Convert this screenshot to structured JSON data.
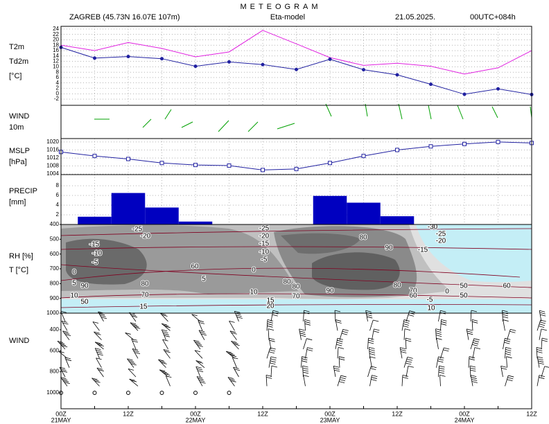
{
  "header": {
    "title": "METEOGRAM",
    "station": "ZAGREB (45.73N 16.07E  107m)",
    "model": "Eta-model",
    "date": "21.05.2025.",
    "run": "00UTC+084h"
  },
  "xlim": [
    0,
    84
  ],
  "x": [
    0,
    6,
    12,
    18,
    24,
    30,
    36,
    42,
    48,
    54,
    60,
    66,
    72,
    78,
    84
  ],
  "xticks": [
    {
      "value": 0,
      "label": "00Z"
    },
    {
      "value": 12,
      "label": "12Z"
    },
    {
      "value": 24,
      "label": "00Z"
    },
    {
      "value": 36,
      "label": "12Z"
    },
    {
      "value": 48,
      "label": "00Z"
    },
    {
      "value": 60,
      "label": "12Z"
    },
    {
      "value": 72,
      "label": "00Z"
    },
    {
      "value": 84,
      "label": "12Z"
    }
  ],
  "dates": [
    {
      "value": 0,
      "label": "21MAY"
    },
    {
      "value": 24,
      "label": "22MAY"
    },
    {
      "value": 48,
      "label": "23MAY"
    },
    {
      "value": 72,
      "label": "24MAY"
    }
  ],
  "chart_data": [
    {
      "type": "line",
      "unit": "[°C]",
      "ylim": [
        -4.3,
        25
      ],
      "yticks": [
        -2,
        0,
        2,
        4,
        6,
        8,
        10,
        12,
        14,
        16,
        18,
        20,
        22,
        24
      ],
      "grid": true,
      "series": [
        {
          "name": "T2m",
          "color": "#e020e0",
          "marker": "none",
          "values": [
            18,
            16,
            19,
            16.8,
            13.7,
            15.5,
            23.5,
            18.5,
            13.4,
            10.5,
            11.3,
            10.2,
            7.3,
            9.6,
            16
          ]
        },
        {
          "name": "Td2m",
          "color": "#2020a0",
          "marker": "circle",
          "values": [
            17.2,
            13.2,
            13.8,
            13,
            10.2,
            11.8,
            10.8,
            9,
            12.8,
            8.9,
            7,
            3.5,
            -0.2,
            1.8,
            -0.3
          ]
        }
      ]
    },
    {
      "type": "wind",
      "title": "WIND",
      "unit": "10m",
      "color": "#00a000"
    },
    {
      "type": "line",
      "ylim": [
        1003.7,
        1021.7
      ],
      "yticks": [
        1004,
        1008,
        1012,
        1016,
        1020
      ],
      "grid": true,
      "series": [
        {
          "name": "MSLP",
          "unit": "[hPa]",
          "color": "#2020a0",
          "marker": "square",
          "values": [
            1015,
            1013,
            1011.5,
            1009.5,
            1008.5,
            1008.2,
            1006,
            1006.5,
            1009.5,
            1013,
            1016,
            1017.8,
            1019,
            1020,
            1019.5
          ]
        }
      ]
    },
    {
      "type": "bar",
      "name": "PRECIP",
      "unit": "[mm]",
      "color": "#0000c0",
      "ylim": [
        0,
        10.3
      ],
      "yticks": [
        2,
        4,
        6,
        8
      ],
      "grid": true,
      "values": [
        0,
        1.6,
        6.5,
        3.5,
        0.6,
        0,
        0,
        0,
        5.9,
        4.5,
        1.7,
        0,
        0,
        0,
        0
      ]
    },
    {
      "type": "section",
      "title": "RH [%]",
      "subtitle": "T [°C]",
      "ylim": [
        400,
        1000
      ],
      "yticks": [
        400,
        500,
        600,
        700,
        800,
        900,
        1000
      ],
      "t_color": "#800020",
      "t_labels": [
        "-25",
        "-20",
        "-15",
        "-10",
        "-5",
        "0",
        "5",
        "10",
        "15",
        "5",
        "-5",
        "0",
        "10",
        "-25",
        "-20",
        "-15",
        "-10",
        "15",
        "20",
        "-30",
        "-25",
        "-20",
        "-15",
        "0",
        "-5",
        "10"
      ],
      "rh_labels": [
        "90",
        "80",
        "70",
        "50",
        "60",
        "80",
        "90",
        "80",
        "80",
        "70",
        "90",
        "80",
        "70",
        "60",
        "50",
        "50",
        "60"
      ]
    },
    {
      "type": "upperwind",
      "title": "WIND",
      "ylim": [
        242,
        1152
      ],
      "yticks": [
        400,
        600,
        800,
        1000
      ]
    }
  ]
}
